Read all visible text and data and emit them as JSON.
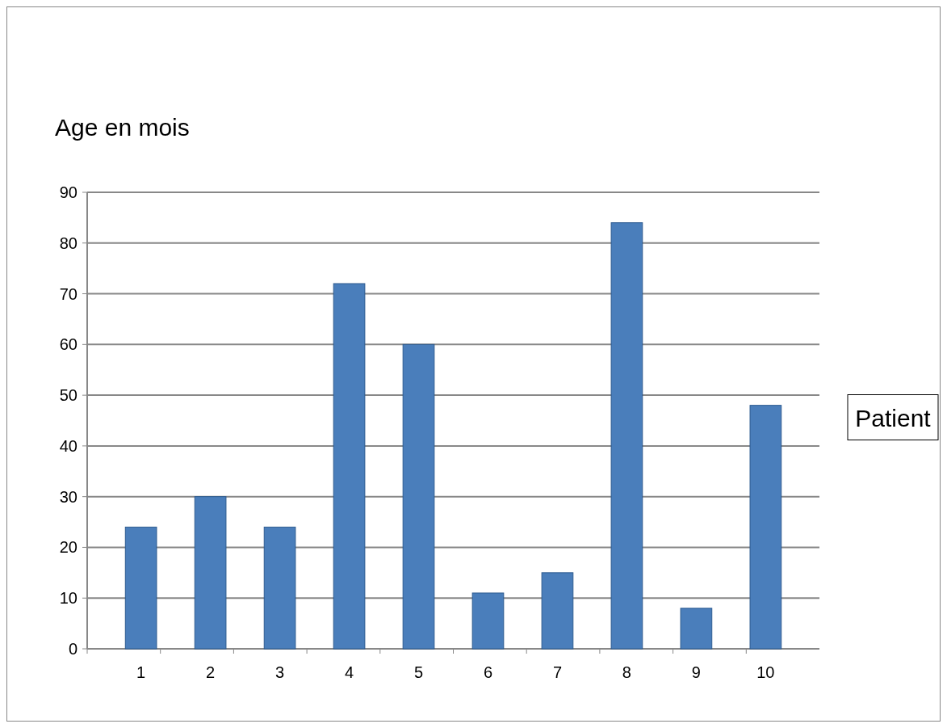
{
  "chart_data": {
    "type": "bar",
    "ylabel": "Age en mois",
    "xlabel": "Patient",
    "categories": [
      "1",
      "2",
      "3",
      "4",
      "5",
      "6",
      "7",
      "8",
      "9",
      "10"
    ],
    "values": [
      24,
      30,
      24,
      72,
      60,
      11,
      15,
      84,
      8,
      48
    ],
    "color": "#4a7ebb",
    "ylim": [
      0,
      90
    ],
    "yticks": [
      0,
      10,
      20,
      30,
      40,
      50,
      60,
      70,
      80,
      90
    ],
    "grid": "y"
  }
}
